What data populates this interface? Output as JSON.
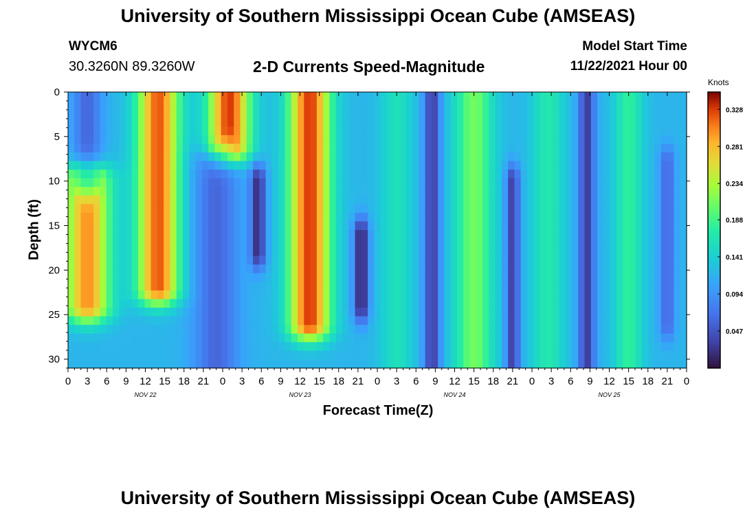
{
  "header": {
    "title": "University of Southern Mississippi Ocean Cube (AMSEAS)",
    "station": "WYCM6",
    "coordinates": "30.3260N  89.3260W",
    "subtitle": "2-D Currents Speed-Magnitude",
    "model_start_label": "Model Start Time",
    "model_start_value": "11/22/2021 Hour 00"
  },
  "footer": {
    "title": "University of Southern Mississippi Ocean Cube (AMSEAS)"
  },
  "colorbar": {
    "label": "Knots",
    "ticks": [
      "0.328",
      "0.281",
      "0.234",
      "0.188",
      "0.141",
      "0.094",
      "0.047"
    ],
    "tick_values": [
      0.328,
      0.281,
      0.234,
      0.188,
      0.141,
      0.094,
      0.047
    ],
    "range": [
      0.0,
      0.35
    ]
  },
  "chart_data": {
    "type": "heatmap",
    "title": "2-D Currents Speed-Magnitude",
    "xlabel": "Forecast Time(Z)",
    "ylabel": "Depth (ft)",
    "units": "Knots",
    "x_tick_labels": [
      "0",
      "3",
      "6",
      "9",
      "12",
      "15",
      "18",
      "21",
      "0",
      "3",
      "6",
      "9",
      "12",
      "15",
      "18",
      "21",
      "0",
      "3",
      "6",
      "9",
      "12",
      "15",
      "18",
      "21",
      "0",
      "3",
      "6",
      "9",
      "12",
      "15",
      "18",
      "21",
      "0"
    ],
    "x_hours": [
      0,
      3,
      6,
      9,
      12,
      15,
      18,
      21,
      24,
      27,
      30,
      33,
      36,
      39,
      42,
      45,
      48,
      51,
      54,
      57,
      60,
      63,
      66,
      69,
      72,
      75,
      78,
      81,
      84,
      87,
      90,
      93,
      96
    ],
    "x_range_hours": [
      0,
      96
    ],
    "day_labels": [
      {
        "label": "NOV 22",
        "hour": 12
      },
      {
        "label": "NOV 23",
        "hour": 36
      },
      {
        "label": "NOV 24",
        "hour": 60
      },
      {
        "label": "NOV 25",
        "hour": 84
      }
    ],
    "y_ticks": [
      0,
      5,
      10,
      15,
      20,
      25,
      30
    ],
    "y_tick_labels": [
      "0",
      "5",
      "10",
      "15",
      "20",
      "25",
      "30"
    ],
    "y_range_ft": [
      0,
      31
    ],
    "z_range_knots": [
      0.0,
      0.35
    ],
    "colormap": "turbo",
    "grid": false,
    "features": [
      {
        "hour_center": 3,
        "hour_width": 2.2,
        "depth_top": 0,
        "depth_bottom": 9.5,
        "value": 0.06
      },
      {
        "hour_center": 3,
        "hour_width": 3.5,
        "depth_top": 10,
        "depth_bottom": 24,
        "value": 0.3
      },
      {
        "hour_center": 14,
        "hour_width": 3.2,
        "depth_top": 0,
        "depth_bottom": 22,
        "value": 0.32
      },
      {
        "hour_center": 25,
        "hour_width": 3.2,
        "depth_top": 0,
        "depth_bottom": 6,
        "value": 0.33
      },
      {
        "hour_center": 23,
        "hour_width": 3.5,
        "depth_top": 8,
        "depth_bottom": 31,
        "value": 0.06
      },
      {
        "hour_center": 29.5,
        "hour_width": 1.2,
        "depth_top": 10,
        "depth_bottom": 18,
        "value": 0.02
      },
      {
        "hour_center": 37.5,
        "hour_width": 3.2,
        "depth_top": 0,
        "depth_bottom": 26,
        "value": 0.33
      },
      {
        "hour_center": 45.5,
        "hour_width": 1.2,
        "depth_top": 16,
        "depth_bottom": 24,
        "value": 0.01
      },
      {
        "hour_center": 51,
        "hour_width": 2.5,
        "depth_top": 0,
        "depth_bottom": 31,
        "value": 0.16
      },
      {
        "hour_center": 56.5,
        "hour_width": 1.3,
        "depth_top": 0,
        "depth_bottom": 31,
        "value": 0.03
      },
      {
        "hour_center": 63,
        "hour_width": 3.0,
        "depth_top": 0,
        "depth_bottom": 31,
        "value": 0.21
      },
      {
        "hour_center": 69,
        "hour_width": 1.1,
        "depth_top": 10,
        "depth_bottom": 31,
        "value": 0.03
      },
      {
        "hour_center": 74.5,
        "hour_width": 2.5,
        "depth_top": 0,
        "depth_bottom": 31,
        "value": 0.17
      },
      {
        "hour_center": 80.5,
        "hour_width": 1.3,
        "depth_top": 0,
        "depth_bottom": 31,
        "value": 0.03
      },
      {
        "hour_center": 87,
        "hour_width": 2.2,
        "depth_top": 0,
        "depth_bottom": 31,
        "value": 0.18
      },
      {
        "hour_center": 93,
        "hour_width": 1.2,
        "depth_top": 8,
        "depth_bottom": 26,
        "value": 0.06
      }
    ]
  }
}
